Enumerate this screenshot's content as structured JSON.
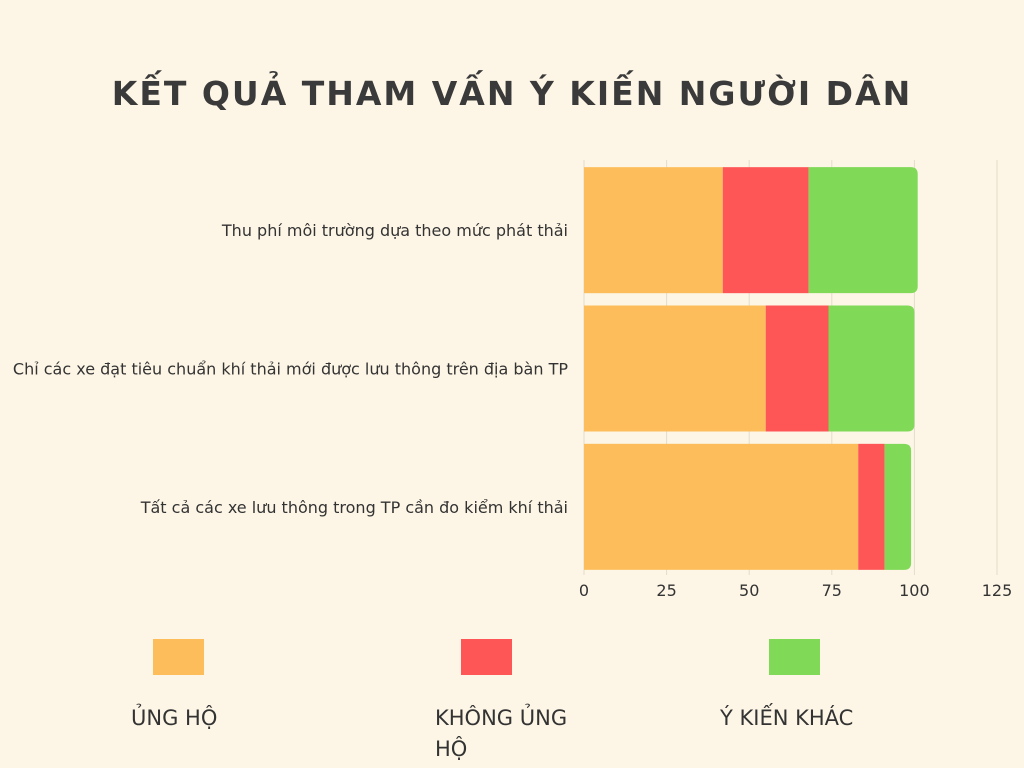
{
  "chart_data": {
    "type": "bar",
    "orientation": "horizontal",
    "stacked": true,
    "title": "KẾT QUẢ THAM VẤN Ý KIẾN NGƯỜI DÂN",
    "categories": [
      "Thu phí môi trường dựa theo mức phát thải",
      "Chỉ các xe đạt tiêu chuẩn khí thải mới được lưu thông trên địa bàn TP",
      "Tất cả các xe lưu thông trong TP cần đo kiểm khí thải"
    ],
    "series": [
      {
        "name": "ỦNG HỘ",
        "color": "#fdbd5a",
        "values": [
          42,
          55,
          83
        ]
      },
      {
        "name": "KHÔNG ỦNG HỘ",
        "color": "#fe5656",
        "values": [
          26,
          19,
          8
        ]
      },
      {
        "name": "Ý KIẾN KHÁC",
        "color": "#80d957",
        "values": [
          33,
          26,
          8
        ]
      }
    ],
    "xlim": [
      0,
      125
    ],
    "xticks": [
      "0",
      "25",
      "50",
      "75",
      "100",
      "125"
    ],
    "grid": true,
    "legend_position": "bottom"
  }
}
